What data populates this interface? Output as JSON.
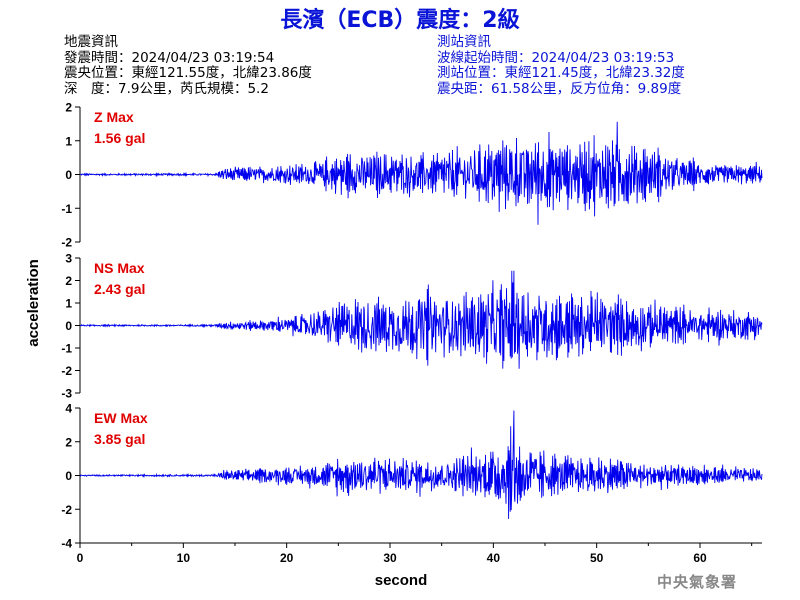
{
  "title": "長濱（ECB）震度：2級",
  "event_info": {
    "heading": "地震資訊",
    "origin_time": "發震時間：2024/04/23 03:19:54",
    "epicenter": "震央位置：東經121.55度，北緯23.86度",
    "depth_magnitude": "深　度：7.9公里，芮氏規模：5.2"
  },
  "station_info": {
    "heading": "測站資訊",
    "wave_start": "波線起始時間：2024/04/23 03:19:53",
    "station_location": "測站位置：東經121.45度，北緯23.32度",
    "distance_azimuth": "震央距：61.58公里，反方位角：9.89度"
  },
  "agency": "中央氣象署",
  "colors": {
    "trace": "#0000ee",
    "title": "#0a14d6",
    "max_label": "#e00000",
    "axis": "#000000"
  },
  "chart_data": {
    "type": "line",
    "xlabel": "second",
    "ylabel": "acceleration",
    "xlim": [
      0,
      66
    ],
    "xticks": [
      0,
      10,
      20,
      30,
      40,
      50,
      60
    ],
    "panels": [
      {
        "name": "Z",
        "max_label": "Z Max",
        "max_value": "1.56 gal",
        "ylim": [
          -2,
          2
        ],
        "yticks": [
          -2,
          -1,
          0,
          1,
          2
        ],
        "peak": 1.56,
        "envelope": [
          [
            0,
            0.03
          ],
          [
            13,
            0.04
          ],
          [
            14,
            0.25
          ],
          [
            18,
            0.3
          ],
          [
            22,
            0.4
          ],
          [
            24,
            0.6
          ],
          [
            26,
            0.75
          ],
          [
            30,
            0.8
          ],
          [
            33,
            0.7
          ],
          [
            36,
            0.9
          ],
          [
            40,
            1.1
          ],
          [
            42,
            1.3
          ],
          [
            44,
            1.35
          ],
          [
            47,
            1.1
          ],
          [
            50,
            1.2
          ],
          [
            52,
            1.4
          ],
          [
            54,
            1.0
          ],
          [
            57,
            0.7
          ],
          [
            60,
            0.4
          ],
          [
            66,
            0.3
          ]
        ]
      },
      {
        "name": "NS",
        "max_label": "NS Max",
        "max_value": "2.43 gal",
        "ylim": [
          -3,
          3
        ],
        "yticks": [
          -3,
          -2,
          -1,
          0,
          1,
          2,
          3
        ],
        "peak": 2.43,
        "envelope": [
          [
            0,
            0.04
          ],
          [
            13,
            0.05
          ],
          [
            14,
            0.2
          ],
          [
            18,
            0.3
          ],
          [
            21,
            0.5
          ],
          [
            24,
            1.0
          ],
          [
            26,
            1.4
          ],
          [
            28,
            1.6
          ],
          [
            30,
            1.5
          ],
          [
            33,
            1.9
          ],
          [
            36,
            1.6
          ],
          [
            40,
            2.1
          ],
          [
            42,
            2.3
          ],
          [
            44,
            2.0
          ],
          [
            47,
            1.8
          ],
          [
            50,
            1.6
          ],
          [
            53,
            1.4
          ],
          [
            56,
            1.1
          ],
          [
            60,
            0.9
          ],
          [
            66,
            0.7
          ]
        ]
      },
      {
        "name": "EW",
        "max_label": "EW Max",
        "max_value": "3.85 gal",
        "ylim": [
          -4,
          4
        ],
        "yticks": [
          -4,
          -2,
          0,
          2,
          4
        ],
        "peak": 3.85,
        "envelope": [
          [
            0,
            0.05
          ],
          [
            13,
            0.07
          ],
          [
            14,
            0.35
          ],
          [
            18,
            0.5
          ],
          [
            22,
            0.7
          ],
          [
            24,
            1.0
          ],
          [
            26,
            1.3
          ],
          [
            30,
            1.3
          ],
          [
            33,
            1.1
          ],
          [
            36,
            1.3
          ],
          [
            39,
            1.5
          ],
          [
            41,
            2.5
          ],
          [
            42,
            3.4
          ],
          [
            43,
            2.2
          ],
          [
            45,
            1.6
          ],
          [
            48,
            1.2
          ],
          [
            51,
            1.4
          ],
          [
            54,
            0.9
          ],
          [
            58,
            0.7
          ],
          [
            62,
            0.6
          ],
          [
            66,
            0.5
          ]
        ]
      }
    ]
  }
}
